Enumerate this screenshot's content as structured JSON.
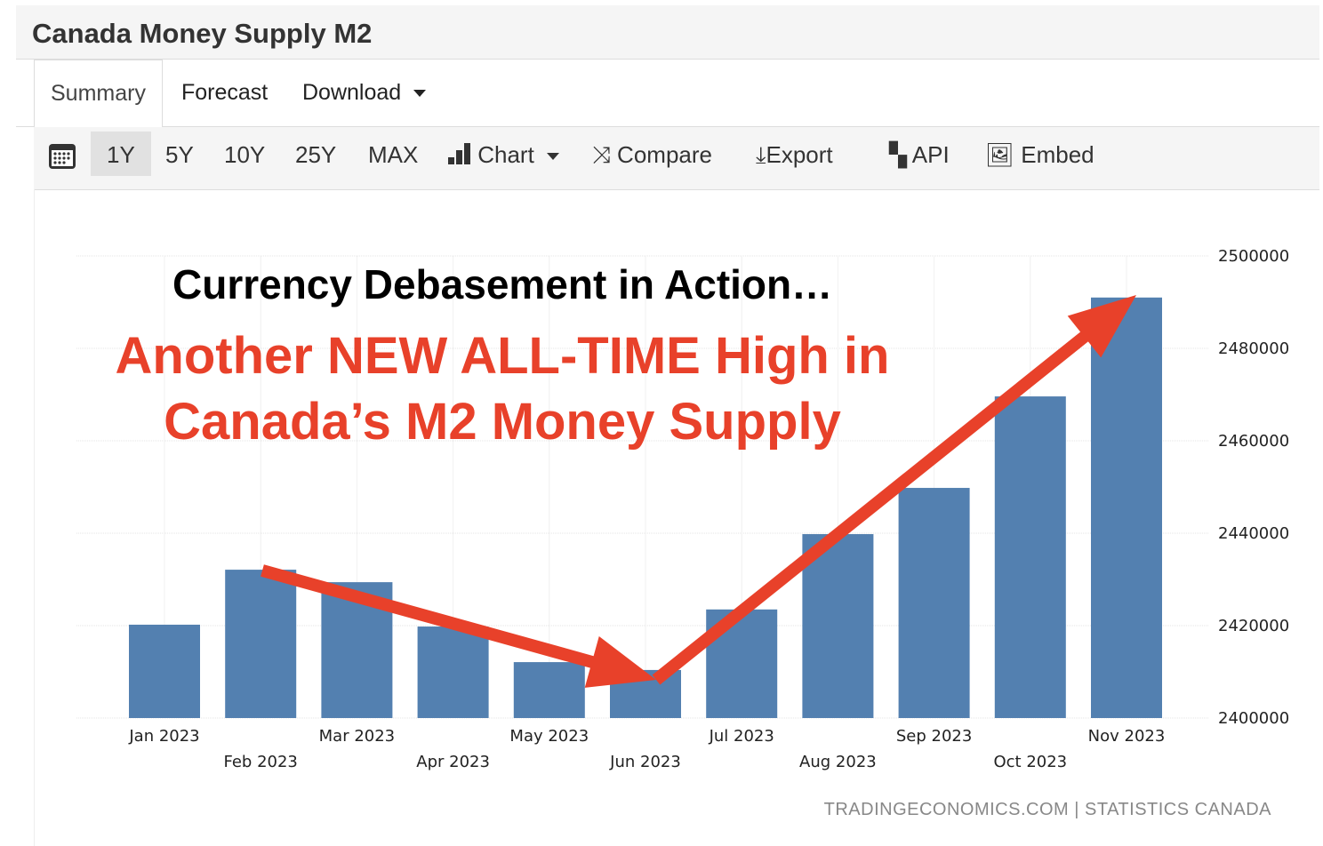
{
  "header": {
    "title": "Canada Money Supply M2"
  },
  "tabs": [
    {
      "label": "Summary"
    },
    {
      "label": "Forecast"
    },
    {
      "label": "Download"
    }
  ],
  "toolbar": {
    "ranges": [
      "1Y",
      "5Y",
      "10Y",
      "25Y",
      "MAX"
    ],
    "chart": "Chart",
    "compare": "Compare",
    "export": "Export",
    "api": "API",
    "embed": "Embed"
  },
  "annotations": {
    "headline": "Currency Debasement in Action…",
    "line1": "Another NEW ALL-TIME High in",
    "line2": "Canada’s M2 Money Supply"
  },
  "source": "TRADINGECONOMICS.COM | STATISTICS CANADA",
  "colors": {
    "bar": "#5380b0",
    "annotation": "#e8412a"
  },
  "chart_data": {
    "type": "bar",
    "title": "Canada Money Supply M2",
    "categories": [
      "Jan 2023",
      "Feb 2023",
      "Mar 2023",
      "Apr 2023",
      "May 2023",
      "Jun 2023",
      "Jul 2023",
      "Aug 2023",
      "Sep 2023",
      "Oct 2023",
      "Nov 2023"
    ],
    "values": [
      2420200,
      2432100,
      2429400,
      2419800,
      2412100,
      2410400,
      2423500,
      2439800,
      2449800,
      2469600,
      2491000
    ],
    "ylim": [
      2400000,
      2500000
    ],
    "yticks": [
      "2400000",
      "2420000",
      "2440000",
      "2460000",
      "2480000",
      "2500000"
    ],
    "grid": true,
    "xlabel": "",
    "ylabel": ""
  }
}
